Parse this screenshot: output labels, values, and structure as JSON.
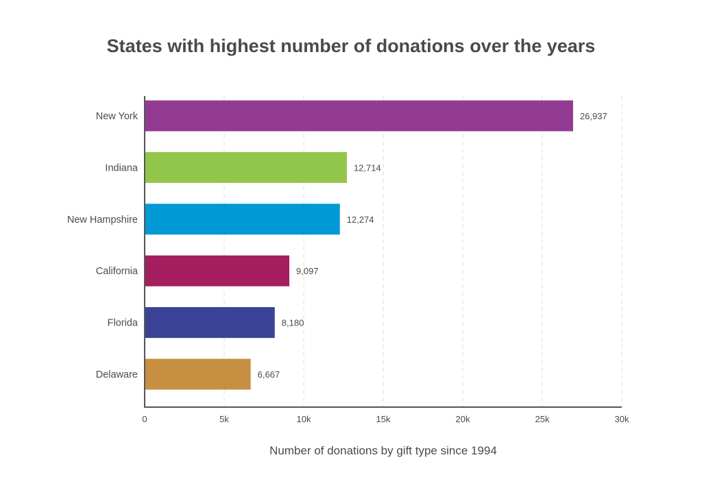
{
  "chart_data": {
    "type": "bar",
    "orientation": "horizontal",
    "title": "States with highest number of donations over the years",
    "xlabel": "Number of donations by gift type since 1994",
    "ylabel": "",
    "categories": [
      "New York",
      "Indiana",
      "New Hampshire",
      "California",
      "Florida",
      "Delaware"
    ],
    "values": [
      26937,
      12714,
      12274,
      9097,
      8180,
      6667
    ],
    "data_labels": [
      "26,937",
      "12,714",
      "12,274",
      "9,097",
      "8,180",
      "6,667"
    ],
    "colors": [
      "#933b92",
      "#92c64a",
      "#0099d5",
      "#a51e60",
      "#3b4398",
      "#c68f42"
    ],
    "xlim": [
      0,
      30000
    ],
    "xticks": [
      0,
      5000,
      10000,
      15000,
      20000,
      25000,
      30000
    ],
    "xtick_labels": [
      "0",
      "5k",
      "10k",
      "15k",
      "20k",
      "25k",
      "30k"
    ],
    "grid": "vertical dashed",
    "legend": "none"
  }
}
